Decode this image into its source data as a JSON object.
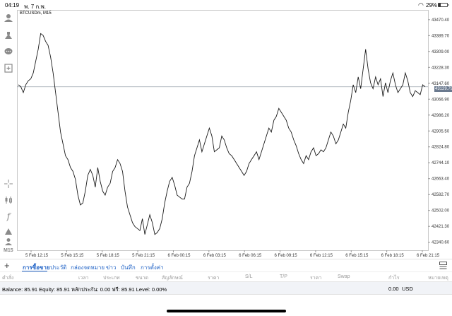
{
  "status": {
    "time": "04:19",
    "date": "พ. 7 ก.พ.",
    "battery_text": "29%",
    "battery_level": 0.29
  },
  "chart": {
    "symbol_label": "BTCUSDm, M15",
    "current_price_label": "43129.79",
    "current_price": 43129.79,
    "sidebar_timeframe": "M15",
    "line_color": "#1a1a1a"
  },
  "chart_data": {
    "type": "line",
    "title": "",
    "xlabel": "",
    "ylabel": "",
    "ylim": [
      42300,
      43520
    ],
    "y_ticks": [
      "43470.40",
      "43389.70",
      "43309.00",
      "43228.30",
      "43147.60",
      "43066.90",
      "42986.20",
      "42905.50",
      "42824.80",
      "42744.10",
      "42663.40",
      "42582.70",
      "42502.00",
      "42421.30",
      "42340.60"
    ],
    "x_ticks": [
      "5 Feb 12:15",
      "5 Feb 15:15",
      "5 Feb 18:15",
      "5 Feb 21:15",
      "6 Feb 00:15",
      "6 Feb 03:15",
      "6 Feb 06:15",
      "6 Feb 09:15",
      "6 Feb 12:15",
      "6 Feb 15:15",
      "6 Feb 18:15",
      "6 Feb 21:15"
    ],
    "series": [
      {
        "values": [
          43140,
          43130,
          43100,
          43140,
          43160,
          43170,
          43200,
          43260,
          43320,
          43400,
          43390,
          43360,
          43340,
          43280,
          43200,
          43100,
          43000,
          42900,
          42840,
          42780,
          42760,
          42720,
          42700,
          42660,
          42580,
          42530,
          42540,
          42600,
          42680,
          42710,
          42680,
          42620,
          42720,
          42650,
          42600,
          42580,
          42620,
          42640,
          42700,
          42720,
          42760,
          42740,
          42700,
          42600,
          42520,
          42480,
          42440,
          42420,
          42410,
          42400,
          42460,
          42380,
          42430,
          42480,
          42440,
          42380,
          42390,
          42410,
          42460,
          42540,
          42600,
          42650,
          42670,
          42630,
          42580,
          42570,
          42560,
          42560,
          42620,
          42640,
          42700,
          42780,
          42820,
          42860,
          42800,
          42840,
          42880,
          42920,
          42880,
          42800,
          42810,
          42820,
          42880,
          42860,
          42820,
          42790,
          42780,
          42760,
          42740,
          42720,
          42700,
          42680,
          42700,
          42740,
          42760,
          42780,
          42800,
          42760,
          42800,
          42840,
          42880,
          42920,
          42900,
          42960,
          42980,
          43020,
          43000,
          42980,
          42960,
          42920,
          42900,
          42860,
          42830,
          42790,
          42760,
          42740,
          42780,
          42760,
          42800,
          42820,
          42780,
          42790,
          42810,
          42800,
          42820,
          42860,
          42900,
          42880,
          42840,
          42860,
          42900,
          42940,
          42920,
          43000,
          43060,
          43140,
          43100,
          43180,
          43120,
          43220,
          43320,
          43220,
          43150,
          43120,
          43180,
          43140,
          43170,
          43080,
          43150,
          43100,
          43160,
          43200,
          43140,
          43100,
          43120,
          43140,
          43200,
          43160,
          43100,
          43080,
          43110,
          43100,
          43090,
          43140,
          43130
        ]
      }
    ]
  },
  "tabs": [
    {
      "label": "การซื้อขาย",
      "active": true
    },
    {
      "label": "ประวัติ",
      "active": false
    },
    {
      "label": "กล่องจดหมาย",
      "active": false
    },
    {
      "label": "ข่าว",
      "active": false
    },
    {
      "label": "บันทึก",
      "active": false
    },
    {
      "label": "การตั้งค่า",
      "active": false
    }
  ],
  "columns": [
    "คำสั่ง",
    "เวลา",
    "ประเภท",
    "ขนาด",
    "สัญลักษณ์",
    "ราคา",
    "S/L",
    "T/P",
    "ราคา",
    "Swap",
    "กำไร",
    "หมายเหตุ"
  ],
  "balance": {
    "text": "Balance: 85.91 Equity: 85.91 หลักประกัน: 0.00 ฟรี: 85.91 Level: 0.00%",
    "profit": "0.00",
    "currency": "USD"
  }
}
